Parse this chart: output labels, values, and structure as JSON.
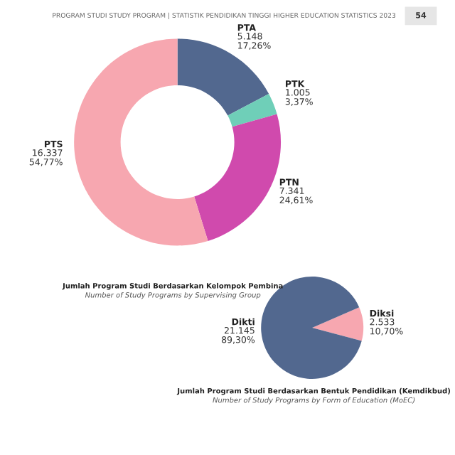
{
  "chart_data": [
    {
      "type": "donut",
      "title": "Jumlah Program Studi Berdasarkan Kelompok Pembina",
      "subtitle": "Number of Study Programs by Supervising Group",
      "categories": [
        "PTA",
        "PTK",
        "PTN",
        "PTS"
      ],
      "values": [
        5148,
        1005,
        7341,
        16337
      ],
      "colors": [
        "#52688f",
        "#6fcfb8",
        "#d04aad",
        "#f7a7b0"
      ],
      "value_labels": [
        "5.148\n17,26%",
        "1.005\n3,37%",
        "7.341\n24,61%",
        "16.337\n54,77%"
      ],
      "annotations": [
        "PROGRAM STUDI STUDY PROGRAM | STATISTIK PENDIDIKAN TINGGI HIGHER EDUCATION STATISTICS 2023",
        "54"
      ]
    },
    {
      "type": "pie",
      "title": "Jumlah Program Studi Berdasarkan Bentuk Pendidikan (Kemdikbud)",
      "subtitle": "Number of Study Programs by Form of Education (MoEC)",
      "categories": [
        "Diksi",
        "Dikti"
      ],
      "values": [
        2533,
        21145
      ],
      "colors": [
        "#f7a7b0",
        "#52688f"
      ],
      "value_labels": [
        "2.533\n10,70%",
        "21.145\n89,30%"
      ]
    }
  ]
}
